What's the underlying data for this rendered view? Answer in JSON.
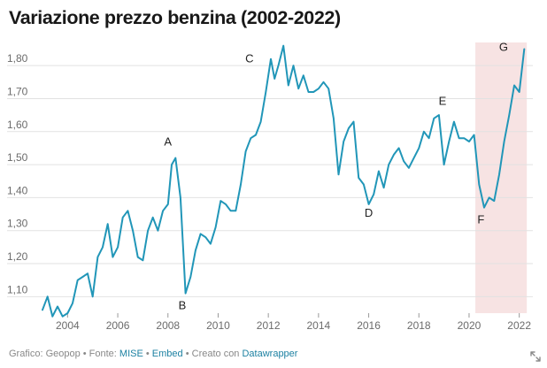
{
  "chart_data": {
    "type": "line",
    "title": "Variazione prezzo benzina (2002-2022)",
    "xlabel": "",
    "ylabel": "",
    "xlim": [
      2003.0,
      2022.4
    ],
    "ylim": [
      1.05,
      1.87
    ],
    "x_ticks": [
      2004,
      2006,
      2008,
      2010,
      2012,
      2014,
      2016,
      2018,
      2020,
      2022
    ],
    "y_ticks": [
      1.1,
      1.2,
      1.3,
      1.4,
      1.5,
      1.6,
      1.7,
      1.8
    ],
    "y_tick_labels": [
      "1,10",
      "1,20",
      "1,30",
      "1,40",
      "1,50",
      "1,60",
      "1,70",
      "1,80"
    ],
    "grid": "horizontal",
    "line_color": "#2196b8",
    "highlight": {
      "x_range": [
        2020.25,
        2022.3
      ],
      "color": "#f7e3e3"
    },
    "annotations": [
      {
        "label": "A",
        "x": 2008.0,
        "y": 1.52
      },
      {
        "label": "B",
        "x": 2008.5,
        "y": 1.11
      },
      {
        "label": "C",
        "x": 2011.6,
        "y": 1.81
      },
      {
        "label": "D",
        "x": 2016.0,
        "y": 1.39
      },
      {
        "label": "E",
        "x": 2018.8,
        "y": 1.66
      },
      {
        "label": "F",
        "x": 2020.4,
        "y": 1.37
      },
      {
        "label": "G",
        "x": 2021.8,
        "y": 1.85
      }
    ],
    "series": [
      {
        "x": [
          2003.0,
          2003.2,
          2003.4,
          2003.6,
          2003.8,
          2004.0,
          2004.2,
          2004.4,
          2004.6,
          2004.8,
          2005.0,
          2005.2,
          2005.4,
          2005.6,
          2005.8,
          2006.0,
          2006.2,
          2006.4,
          2006.6,
          2006.8,
          2007.0,
          2007.2,
          2007.4,
          2007.6,
          2007.8,
          2008.0,
          2008.15,
          2008.3,
          2008.5,
          2008.7,
          2008.9,
          2009.1,
          2009.3,
          2009.5,
          2009.7,
          2009.9,
          2010.1,
          2010.3,
          2010.5,
          2010.7,
          2010.9,
          2011.1,
          2011.3,
          2011.5,
          2011.7,
          2011.9,
          2012.1,
          2012.25,
          2012.4,
          2012.6,
          2012.8,
          2013.0,
          2013.2,
          2013.4,
          2013.6,
          2013.8,
          2014.0,
          2014.2,
          2014.4,
          2014.6,
          2014.8,
          2015.0,
          2015.2,
          2015.4,
          2015.6,
          2015.8,
          2016.0,
          2016.2,
          2016.4,
          2016.6,
          2016.8,
          2017.0,
          2017.2,
          2017.4,
          2017.6,
          2017.8,
          2018.0,
          2018.2,
          2018.4,
          2018.6,
          2018.8,
          2019.0,
          2019.2,
          2019.4,
          2019.6,
          2019.8,
          2020.0,
          2020.2,
          2020.4,
          2020.6,
          2020.8,
          2021.0,
          2021.2,
          2021.4,
          2021.6,
          2021.8,
          2022.0,
          2022.2
        ],
        "y": [
          1.06,
          1.1,
          1.04,
          1.07,
          1.04,
          1.05,
          1.08,
          1.15,
          1.16,
          1.17,
          1.1,
          1.22,
          1.25,
          1.32,
          1.22,
          1.25,
          1.34,
          1.36,
          1.3,
          1.22,
          1.21,
          1.3,
          1.34,
          1.3,
          1.36,
          1.38,
          1.5,
          1.52,
          1.4,
          1.11,
          1.16,
          1.24,
          1.29,
          1.28,
          1.26,
          1.31,
          1.39,
          1.38,
          1.36,
          1.36,
          1.44,
          1.54,
          1.58,
          1.59,
          1.63,
          1.72,
          1.82,
          1.76,
          1.8,
          1.86,
          1.74,
          1.8,
          1.73,
          1.77,
          1.72,
          1.72,
          1.73,
          1.75,
          1.73,
          1.64,
          1.47,
          1.57,
          1.61,
          1.63,
          1.46,
          1.44,
          1.38,
          1.41,
          1.48,
          1.43,
          1.5,
          1.53,
          1.55,
          1.51,
          1.49,
          1.52,
          1.55,
          1.6,
          1.58,
          1.64,
          1.65,
          1.5,
          1.57,
          1.63,
          1.58,
          1.58,
          1.57,
          1.59,
          1.44,
          1.37,
          1.4,
          1.39,
          1.47,
          1.57,
          1.65,
          1.74,
          1.72,
          1.85
        ]
      }
    ]
  },
  "footer": {
    "prefix": "Grafico: Geopop • Fonte: ",
    "source_link": "MISE",
    "sep1": " • ",
    "embed_link": "Embed",
    "sep2": " • Creato con ",
    "tool_link": "Datawrapper"
  },
  "icons": {
    "expand": "expand-icon"
  }
}
